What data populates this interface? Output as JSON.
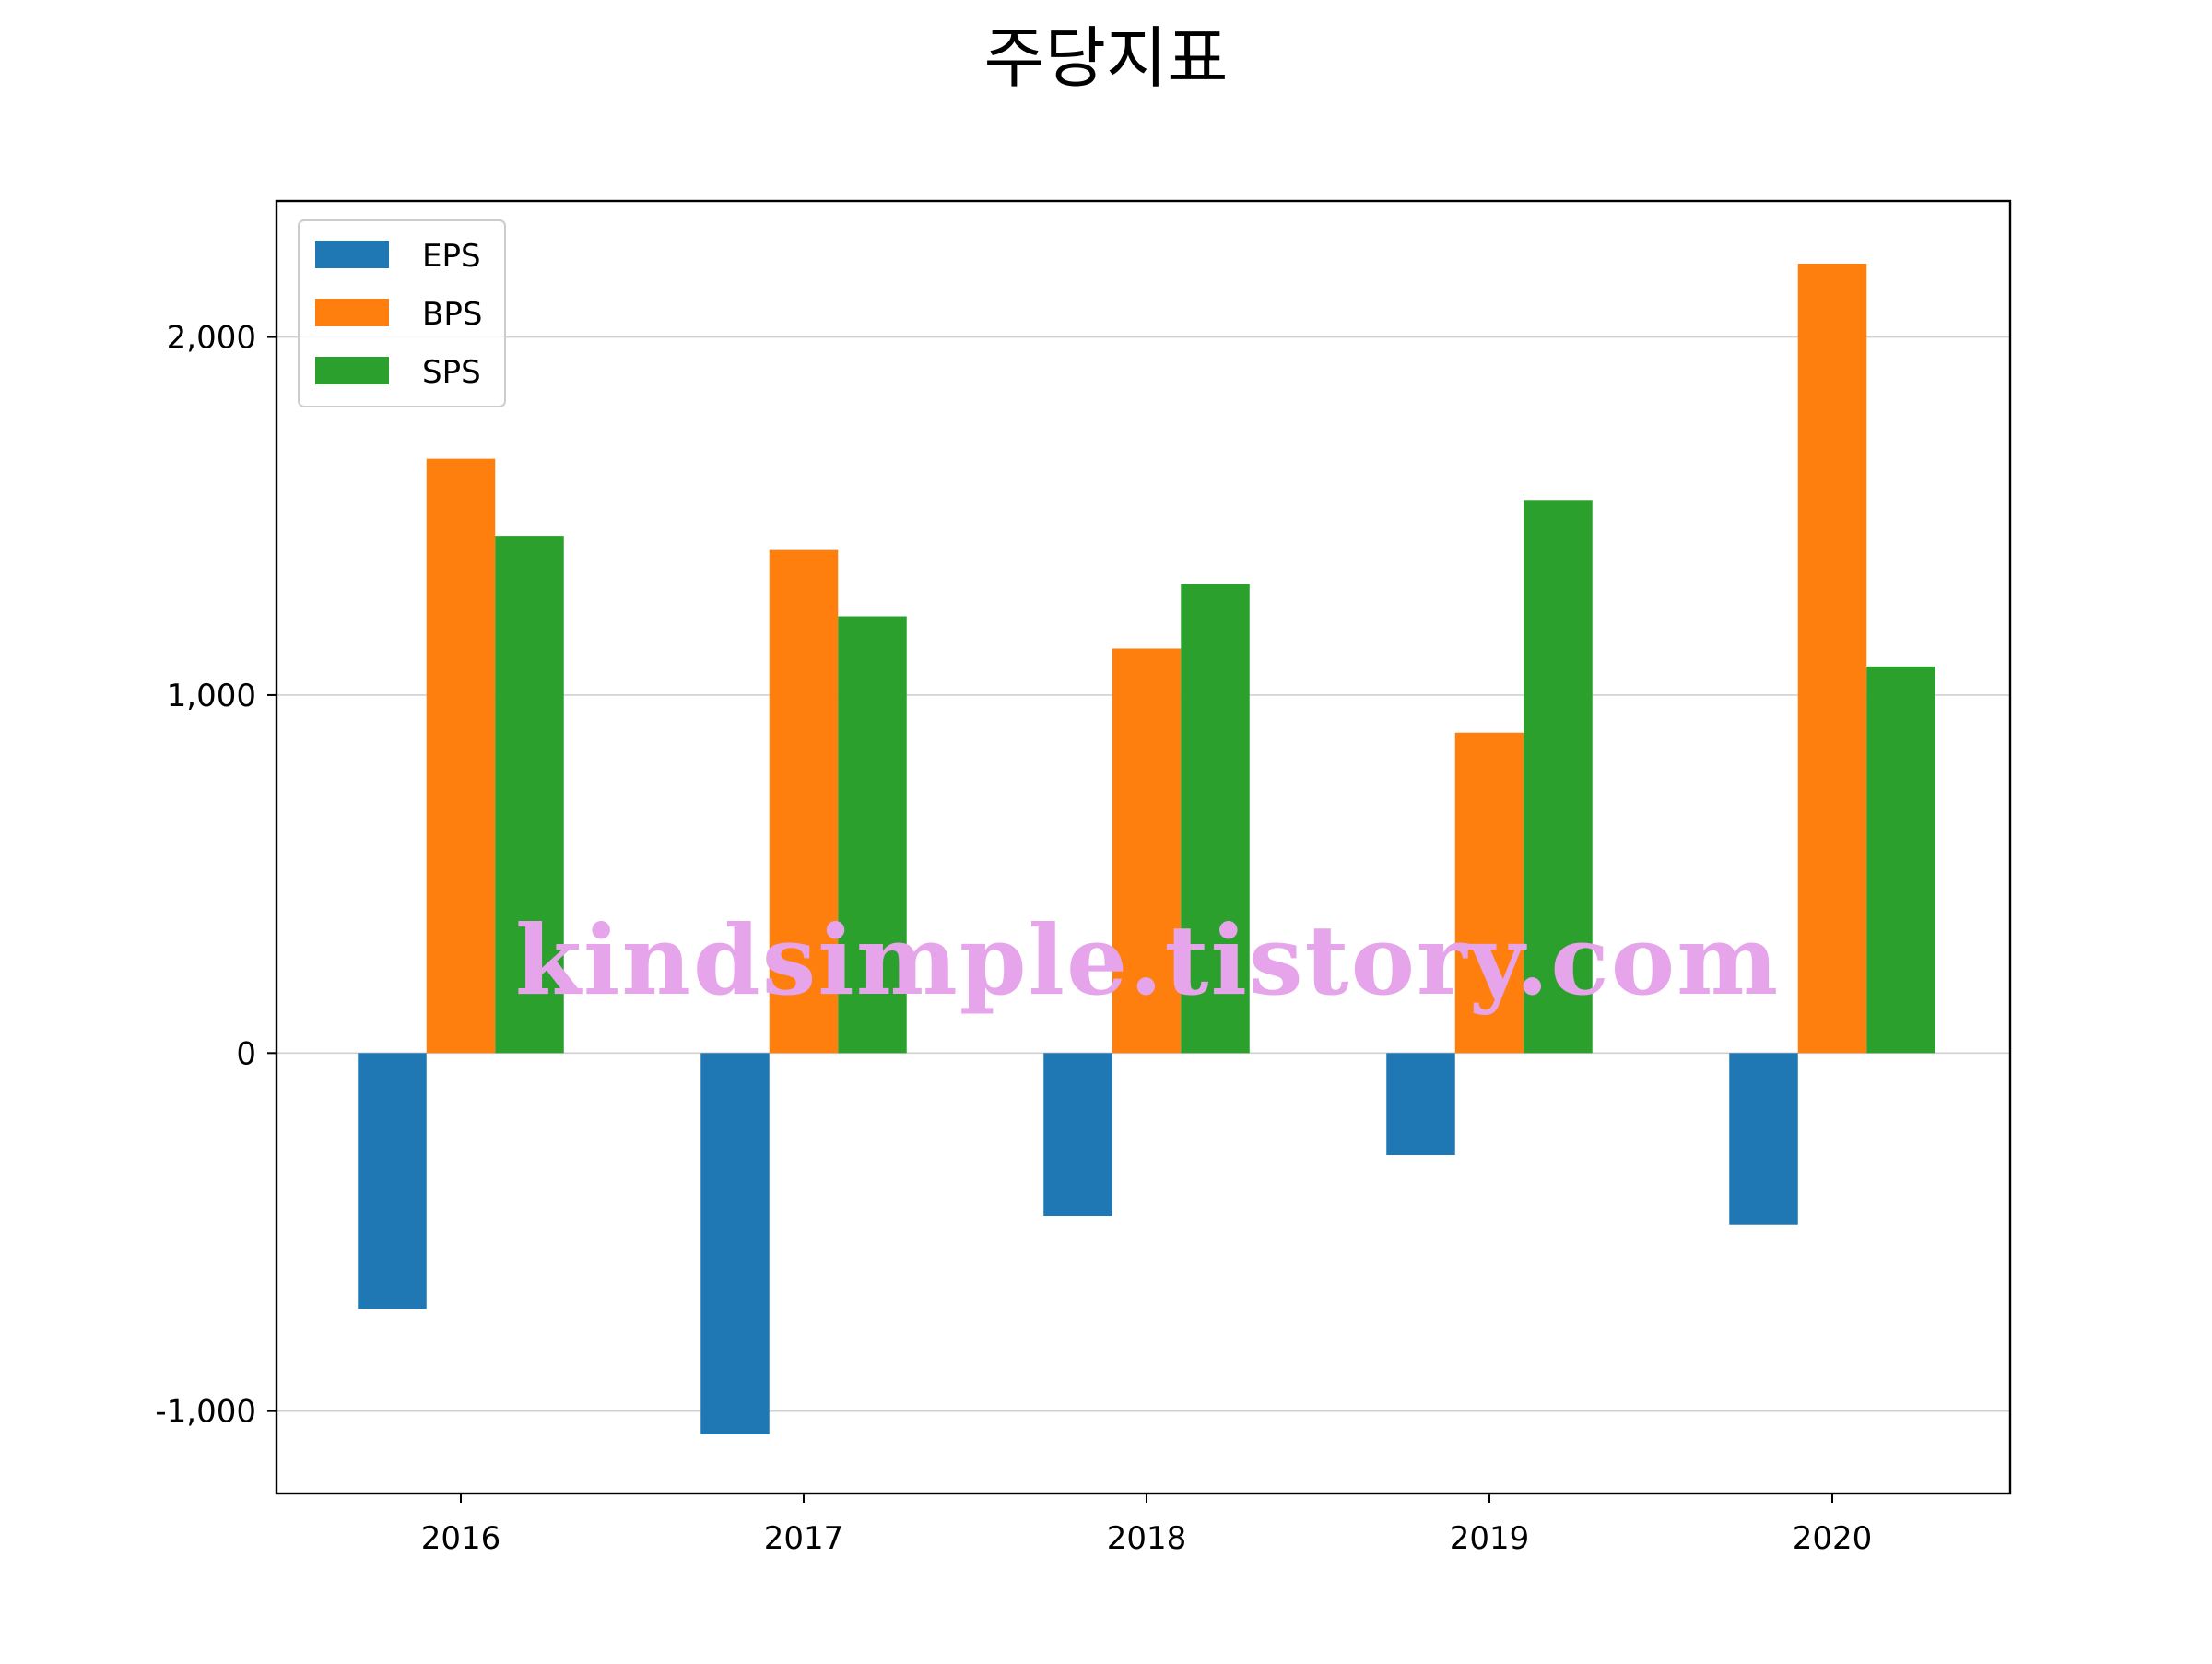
{
  "chart_data": {
    "type": "bar",
    "title": "주당지표",
    "categories": [
      "2016",
      "2017",
      "2018",
      "2019",
      "2020"
    ],
    "series": [
      {
        "name": "EPS",
        "color": "#1f77b4",
        "values": [
          -715,
          -1065,
          -455,
          -285,
          -480
        ]
      },
      {
        "name": "BPS",
        "color": "#ff7f0e",
        "values": [
          1660,
          1405,
          1130,
          895,
          2205
        ]
      },
      {
        "name": "SPS",
        "color": "#2ca02c",
        "values": [
          1445,
          1220,
          1310,
          1545,
          1080
        ]
      }
    ],
    "ylim": [
      -1230,
      2380
    ],
    "yticks": [
      -1000,
      0,
      1000,
      2000
    ],
    "ytick_labels": [
      "-1,000",
      "0",
      "1,000",
      "2,000"
    ],
    "xlabel": "",
    "ylabel": "",
    "grid": "horizontal",
    "legend_position": "upper-left"
  },
  "watermark": "kindsimple.tistory.com"
}
